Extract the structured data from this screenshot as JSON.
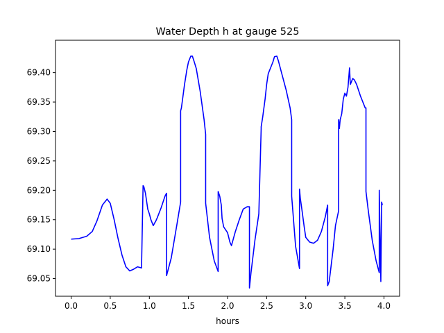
{
  "chart_data": {
    "type": "line",
    "title": "Water Depth h at gauge 525",
    "xlabel": "hours",
    "ylabel": "",
    "xlim": [
      -0.2,
      4.2
    ],
    "ylim": [
      69.02,
      69.455
    ],
    "xticks": [
      0.0,
      0.5,
      1.0,
      1.5,
      2.0,
      2.5,
      3.0,
      3.5,
      4.0
    ],
    "xtick_labels": [
      "0.0",
      "0.5",
      "1.0",
      "1.5",
      "2.0",
      "2.5",
      "3.0",
      "3.5",
      "4.0"
    ],
    "yticks": [
      69.05,
      69.1,
      69.15,
      69.2,
      69.25,
      69.3,
      69.35,
      69.4
    ],
    "ytick_labels": [
      "69.05",
      "69.10",
      "69.15",
      "69.20",
      "69.25",
      "69.30",
      "69.35",
      "69.40"
    ],
    "grid": false,
    "series": [
      {
        "color": "#0000ff",
        "x": [
          0.0,
          0.1,
          0.2,
          0.27,
          0.33,
          0.4,
          0.46,
          0.5,
          0.55,
          0.6,
          0.65,
          0.7,
          0.75,
          0.8,
          0.85,
          0.9,
          0.92,
          0.93,
          0.95,
          0.98,
          1.0,
          1.02,
          1.05,
          1.07,
          1.08,
          1.1,
          1.15,
          1.2,
          1.22,
          1.22,
          1.28,
          1.35,
          1.4,
          1.4,
          1.41,
          1.43,
          1.45,
          1.48,
          1.5,
          1.53,
          1.55,
          1.57,
          1.6,
          1.65,
          1.7,
          1.72,
          1.72,
          1.77,
          1.83,
          1.88,
          1.88,
          1.9,
          1.92,
          1.93,
          1.95,
          2.0,
          2.03,
          2.05,
          2.1,
          2.15,
          2.2,
          2.25,
          2.28,
          2.28,
          2.3,
          2.35,
          2.4,
          2.43,
          2.43,
          2.45,
          2.48,
          2.5,
          2.52,
          2.55,
          2.58,
          2.6,
          2.63,
          2.65,
          2.68,
          2.7,
          2.75,
          2.8,
          2.82,
          2.82,
          2.87,
          2.92,
          2.92,
          2.93,
          2.95,
          2.98,
          3.0,
          3.05,
          3.1,
          3.15,
          3.2,
          3.25,
          3.28,
          3.28,
          3.3,
          3.35,
          3.38,
          3.42,
          3.42,
          3.43,
          3.44,
          3.46,
          3.48,
          3.5,
          3.52,
          3.54,
          3.56,
          3.57,
          3.58,
          3.6,
          3.62,
          3.65,
          3.68,
          3.7,
          3.73,
          3.76,
          3.77,
          3.77,
          3.8,
          3.85,
          3.9,
          3.94,
          3.94,
          3.96,
          3.97,
          3.98
        ],
        "y": [
          69.117,
          69.118,
          69.122,
          69.13,
          69.148,
          69.175,
          69.185,
          69.178,
          69.15,
          69.118,
          69.09,
          69.07,
          69.063,
          69.066,
          69.07,
          69.068,
          69.208,
          69.206,
          69.195,
          69.168,
          69.16,
          69.15,
          69.14,
          69.145,
          69.147,
          69.153,
          69.17,
          69.19,
          69.195,
          69.055,
          69.085,
          69.14,
          69.18,
          69.335,
          69.34,
          69.36,
          69.38,
          69.405,
          69.418,
          69.428,
          69.428,
          69.42,
          69.407,
          69.368,
          69.32,
          69.295,
          69.178,
          69.12,
          69.08,
          69.062,
          69.198,
          69.19,
          69.175,
          69.152,
          69.138,
          69.128,
          69.112,
          69.106,
          69.13,
          69.15,
          69.168,
          69.172,
          69.172,
          69.034,
          69.06,
          69.115,
          69.16,
          69.305,
          69.308,
          69.325,
          69.355,
          69.38,
          69.398,
          69.408,
          69.418,
          69.427,
          69.428,
          69.42,
          69.405,
          69.395,
          69.37,
          69.34,
          69.32,
          69.19,
          69.105,
          69.067,
          69.202,
          69.187,
          69.168,
          69.138,
          69.12,
          69.112,
          69.11,
          69.115,
          69.13,
          69.155,
          69.175,
          69.038,
          69.045,
          69.1,
          69.14,
          69.165,
          69.32,
          69.305,
          69.32,
          69.33,
          69.355,
          69.365,
          69.36,
          69.375,
          69.408,
          69.38,
          69.383,
          69.39,
          69.388,
          69.38,
          69.368,
          69.36,
          69.35,
          69.34,
          69.34,
          69.198,
          69.165,
          69.115,
          69.08,
          69.06,
          69.2,
          69.045,
          69.18,
          69.175
        ]
      }
    ]
  }
}
